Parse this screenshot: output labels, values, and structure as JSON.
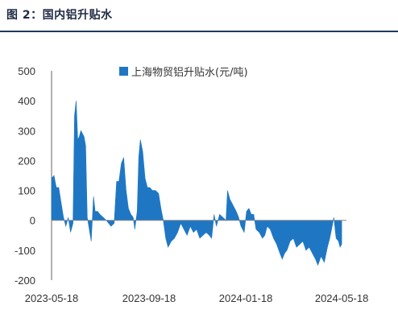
{
  "figure_title": "图 2：国内铝升贴水",
  "chart_data": {
    "type": "area",
    "series": [
      {
        "name": "上海物贸铝升贴水(元/吨)",
        "color": "#1f77c4",
        "points": [
          [
            "2023-05-18",
            140
          ],
          [
            "2023-05-21",
            150
          ],
          [
            "2023-05-24",
            110
          ],
          [
            "2023-05-27",
            110
          ],
          [
            "2023-05-30",
            60
          ],
          [
            "2023-06-02",
            10
          ],
          [
            "2023-06-05",
            -20
          ],
          [
            "2023-06-08",
            10
          ],
          [
            "2023-06-11",
            -40
          ],
          [
            "2023-06-14",
            -10
          ],
          [
            "2023-06-16",
            350
          ],
          [
            "2023-06-18",
            400
          ],
          [
            "2023-06-20",
            270
          ],
          [
            "2023-06-22",
            280
          ],
          [
            "2023-06-24",
            300
          ],
          [
            "2023-06-26",
            290
          ],
          [
            "2023-06-28",
            280
          ],
          [
            "2023-06-30",
            250
          ],
          [
            "2023-07-02",
            10
          ],
          [
            "2023-07-04",
            -20
          ],
          [
            "2023-07-07",
            -70
          ],
          [
            "2023-07-10",
            80
          ],
          [
            "2023-07-12",
            30
          ],
          [
            "2023-07-15",
            30
          ],
          [
            "2023-07-18",
            20
          ],
          [
            "2023-07-22",
            10
          ],
          [
            "2023-07-26",
            0
          ],
          [
            "2023-08-01",
            -20
          ],
          [
            "2023-08-05",
            -10
          ],
          [
            "2023-08-08",
            130
          ],
          [
            "2023-08-11",
            130
          ],
          [
            "2023-08-14",
            190
          ],
          [
            "2023-08-17",
            210
          ],
          [
            "2023-08-20",
            100
          ],
          [
            "2023-08-23",
            40
          ],
          [
            "2023-08-26",
            20
          ],
          [
            "2023-08-29",
            10
          ],
          [
            "2023-08-31",
            -30
          ],
          [
            "2023-09-03",
            30
          ],
          [
            "2023-09-05",
            210
          ],
          [
            "2023-09-07",
            270
          ],
          [
            "2023-09-10",
            230
          ],
          [
            "2023-09-13",
            140
          ],
          [
            "2023-09-16",
            110
          ],
          [
            "2023-09-19",
            110
          ],
          [
            "2023-09-22",
            100
          ],
          [
            "2023-09-26",
            100
          ],
          [
            "2023-09-30",
            90
          ],
          [
            "2023-10-03",
            40
          ],
          [
            "2023-10-06",
            0
          ],
          [
            "2023-10-09",
            -60
          ],
          [
            "2023-10-12",
            -90
          ],
          [
            "2023-10-16",
            -70
          ],
          [
            "2023-10-20",
            -60
          ],
          [
            "2023-10-24",
            -40
          ],
          [
            "2023-10-28",
            -10
          ],
          [
            "2023-11-01",
            -30
          ],
          [
            "2023-11-05",
            -50
          ],
          [
            "2023-11-09",
            -20
          ],
          [
            "2023-11-13",
            -40
          ],
          [
            "2023-11-17",
            -30
          ],
          [
            "2023-11-21",
            -60
          ],
          [
            "2023-11-25",
            -50
          ],
          [
            "2023-11-29",
            -40
          ],
          [
            "2023-12-03",
            -50
          ],
          [
            "2023-12-06",
            -60
          ],
          [
            "2023-12-09",
            20
          ],
          [
            "2023-12-12",
            -20
          ],
          [
            "2023-12-16",
            20
          ],
          [
            "2023-12-20",
            10
          ],
          [
            "2023-12-24",
            0
          ],
          [
            "2023-12-26",
            100
          ],
          [
            "2023-12-29",
            70
          ],
          [
            "2024-01-02",
            50
          ],
          [
            "2024-01-06",
            30
          ],
          [
            "2024-01-09",
            10
          ],
          [
            "2024-01-12",
            -20
          ],
          [
            "2024-01-16",
            -40
          ],
          [
            "2024-01-19",
            30
          ],
          [
            "2024-01-22",
            40
          ],
          [
            "2024-01-25",
            20
          ],
          [
            "2024-01-28",
            20
          ],
          [
            "2024-01-31",
            -30
          ],
          [
            "2024-02-04",
            -40
          ],
          [
            "2024-02-08",
            -60
          ],
          [
            "2024-02-11",
            -50
          ],
          [
            "2024-02-14",
            -20
          ],
          [
            "2024-02-18",
            -30
          ],
          [
            "2024-02-22",
            -60
          ],
          [
            "2024-02-26",
            -80
          ],
          [
            "2024-03-01",
            -110
          ],
          [
            "2024-03-04",
            -130
          ],
          [
            "2024-03-07",
            -110
          ],
          [
            "2024-03-10",
            -100
          ],
          [
            "2024-03-14",
            -70
          ],
          [
            "2024-03-18",
            -60
          ],
          [
            "2024-03-22",
            -90
          ],
          [
            "2024-03-26",
            -80
          ],
          [
            "2024-03-30",
            -70
          ],
          [
            "2024-04-03",
            -100
          ],
          [
            "2024-04-07",
            -90
          ],
          [
            "2024-04-11",
            -110
          ],
          [
            "2024-04-15",
            -130
          ],
          [
            "2024-04-18",
            -150
          ],
          [
            "2024-04-22",
            -120
          ],
          [
            "2024-04-26",
            -140
          ],
          [
            "2024-04-30",
            -90
          ],
          [
            "2024-05-03",
            -60
          ],
          [
            "2024-05-06",
            -20
          ],
          [
            "2024-05-08",
            10
          ],
          [
            "2024-05-11",
            -60
          ],
          [
            "2024-05-14",
            -70
          ],
          [
            "2024-05-16",
            -90
          ],
          [
            "2024-05-18",
            -80
          ]
        ]
      }
    ],
    "x_ticks": [
      "2023-05-18",
      "2023-09-18",
      "2024-01-18",
      "2024-05-18"
    ],
    "y_ticks": [
      500,
      400,
      300,
      200,
      100,
      0,
      -100,
      -200
    ],
    "ylim": [
      -200,
      500
    ],
    "xlim": [
      "2023-05-18",
      "2024-05-24"
    ],
    "grid": false,
    "legend": "top-center"
  }
}
